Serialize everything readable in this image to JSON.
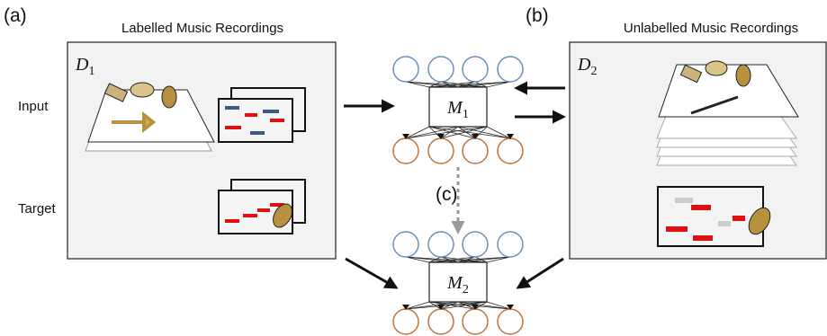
{
  "panels": {
    "a": {
      "tag": "(a)",
      "title": "Labelled Music Recordings",
      "dataset": {
        "symbol": "D",
        "subscript": "1"
      }
    },
    "b": {
      "tag": "(b)",
      "title": "Unlabelled Music Recordings",
      "dataset": {
        "symbol": "D",
        "subscript": "2"
      }
    },
    "c": {
      "tag": "(c)"
    }
  },
  "rows": [
    "Input",
    "Target"
  ],
  "models": [
    {
      "symbol": "M",
      "subscript": "1"
    },
    {
      "symbol": "M",
      "subscript": "2"
    }
  ]
}
